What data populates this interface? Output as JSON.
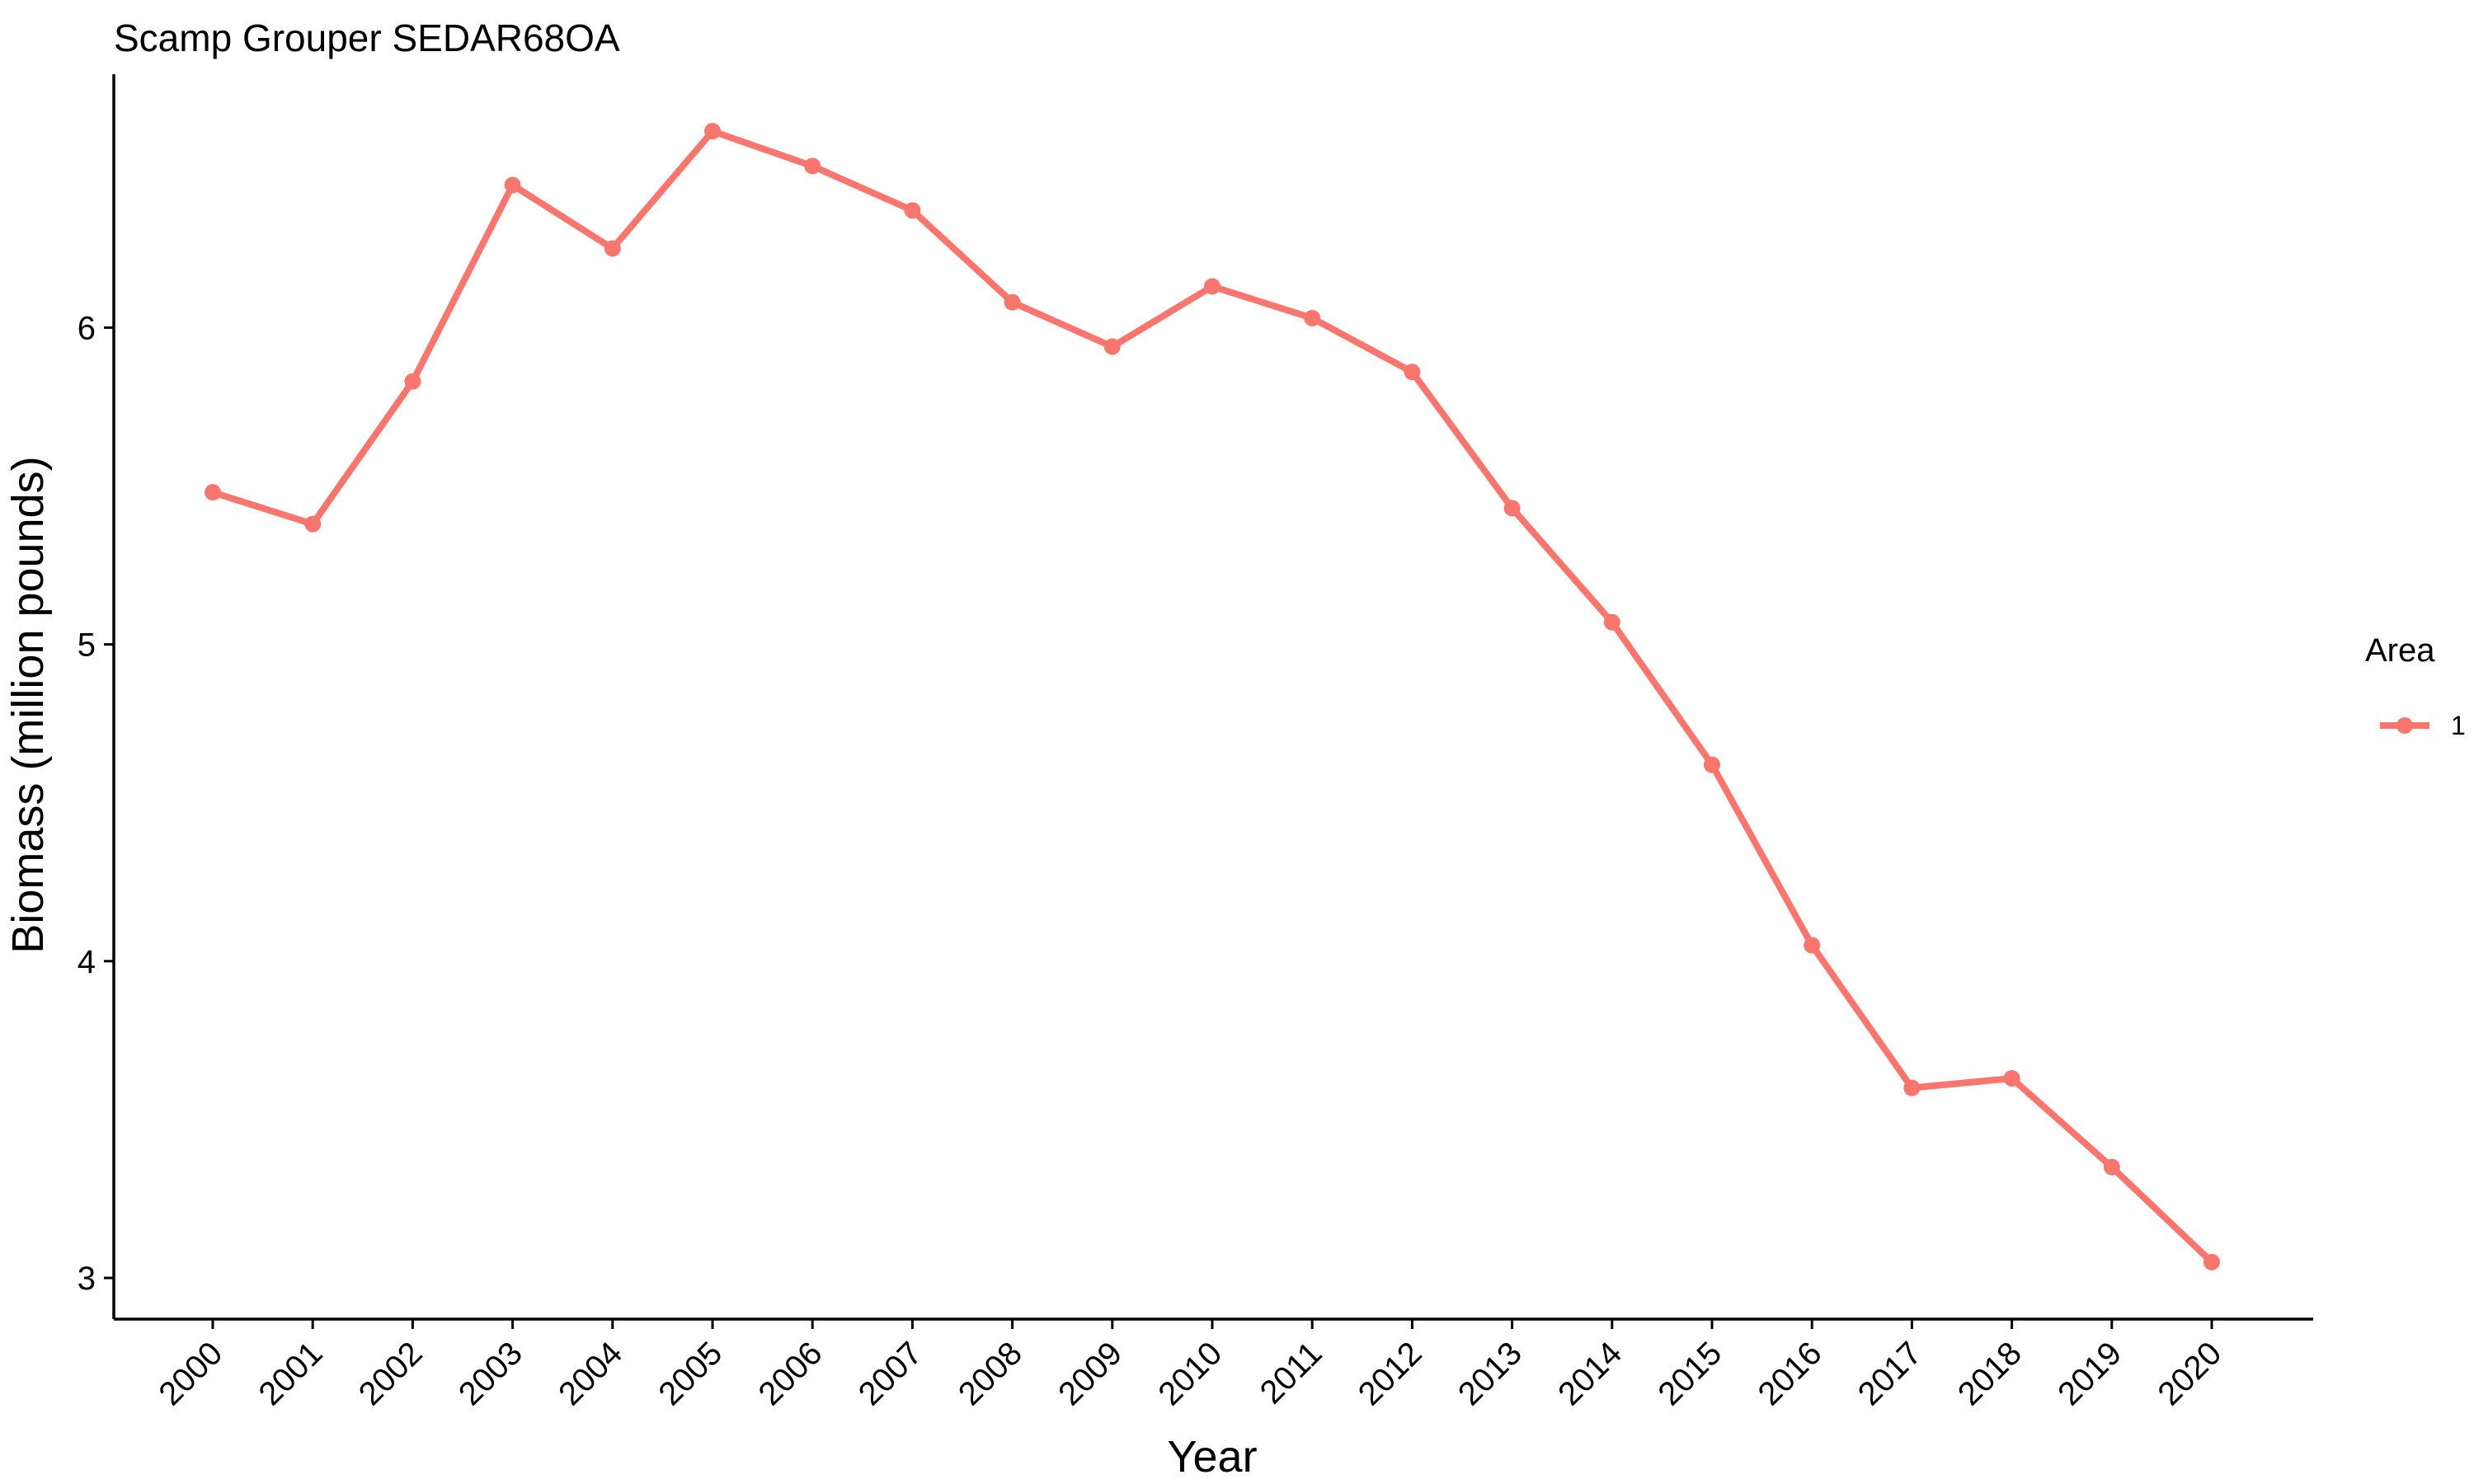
{
  "chart_data": {
    "type": "line",
    "title": "Scamp Grouper SEDAR68OA",
    "xlabel": "Year",
    "ylabel": "Biomass (million pounds)",
    "categories": [
      "2000",
      "2001",
      "2002",
      "2003",
      "2004",
      "2005",
      "2006",
      "2007",
      "2008",
      "2009",
      "2010",
      "2011",
      "2012",
      "2013",
      "2014",
      "2015",
      "2016",
      "2017",
      "2018",
      "2019",
      "2020"
    ],
    "ylim": [
      2.87,
      6.8
    ],
    "yticks": [
      "3",
      "4",
      "5",
      "6"
    ],
    "ytick_values": [
      3,
      4,
      5,
      6
    ],
    "grid": false,
    "legend": {
      "title": "Area",
      "placement": "right",
      "entries": [
        "1"
      ]
    },
    "series": [
      {
        "name": "1",
        "color": "#F8766D",
        "values": [
          5.48,
          5.38,
          5.83,
          6.45,
          6.25,
          6.62,
          6.51,
          6.37,
          6.08,
          5.94,
          6.13,
          6.03,
          5.86,
          5.43,
          5.07,
          4.62,
          4.05,
          3.6,
          3.63,
          3.35,
          3.05
        ]
      }
    ]
  }
}
